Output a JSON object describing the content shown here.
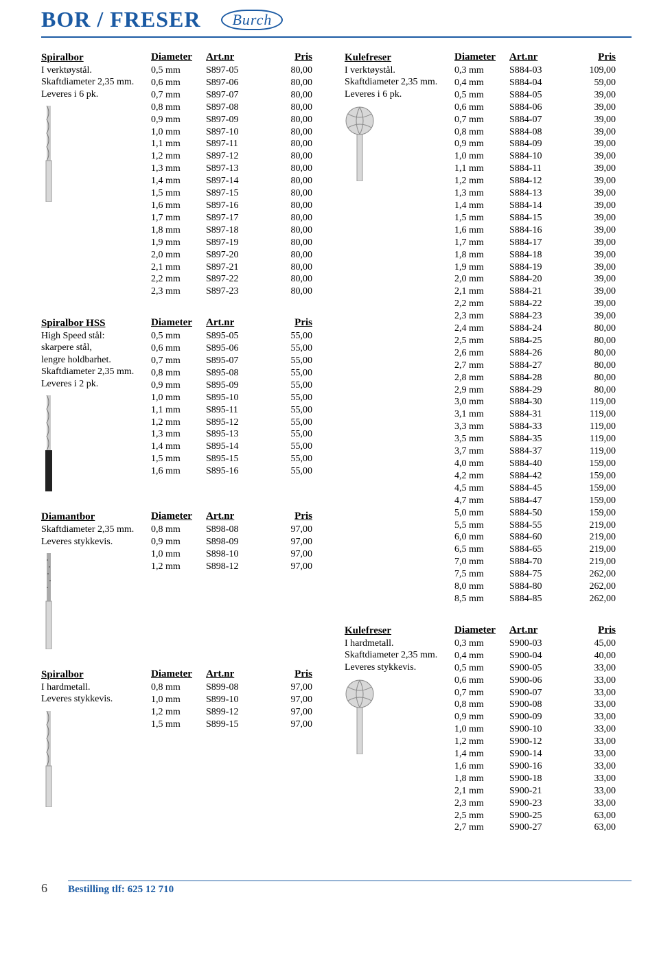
{
  "title": "BOR / FRESER",
  "logo_text": "Burch",
  "headers": {
    "diameter": "Diameter",
    "artnr": "Art.nr",
    "pris": "Pris"
  },
  "footer": {
    "page": "6",
    "order_text": "Bestilling tlf: 625 12 710"
  },
  "left_sections": [
    {
      "name": "Spiralbor",
      "desc_lines": [
        "I verktøystål.",
        "Skaftdiameter 2,35 mm.",
        "Leveres i 6 pk."
      ],
      "img": "twist-drill",
      "rows": [
        [
          "0,5 mm",
          "S897-05",
          "80,00"
        ],
        [
          "0,6 mm",
          "S897-06",
          "80,00"
        ],
        [
          "0,7 mm",
          "S897-07",
          "80,00"
        ],
        [
          "0,8 mm",
          "S897-08",
          "80,00"
        ],
        [
          "0,9 mm",
          "S897-09",
          "80,00"
        ],
        [
          "1,0 mm",
          "S897-10",
          "80,00"
        ],
        [
          "1,1 mm",
          "S897-11",
          "80,00"
        ],
        [
          "1,2 mm",
          "S897-12",
          "80,00"
        ],
        [
          "1,3 mm",
          "S897-13",
          "80,00"
        ],
        [
          "1,4 mm",
          "S897-14",
          "80,00"
        ],
        [
          "1,5 mm",
          "S897-15",
          "80,00"
        ],
        [
          "1,6 mm",
          "S897-16",
          "80,00"
        ],
        [
          "1,7 mm",
          "S897-17",
          "80,00"
        ],
        [
          "1,8 mm",
          "S897-18",
          "80,00"
        ],
        [
          "1,9 mm",
          "S897-19",
          "80,00"
        ],
        [
          "2,0 mm",
          "S897-20",
          "80,00"
        ],
        [
          "2,1 mm",
          "S897-21",
          "80,00"
        ],
        [
          "2,2 mm",
          "S897-22",
          "80,00"
        ],
        [
          "2,3 mm",
          "S897-23",
          "80,00"
        ]
      ]
    },
    {
      "name": "Spiralbor HSS",
      "desc_lines": [
        "High Speed stål:",
        "skarpere stål,",
        "lengre holdbarhet.",
        "Skaftdiameter 2,35 mm.",
        "Leveres i 2 pk."
      ],
      "img": "twist-drill-black",
      "rows": [
        [
          "0,5 mm",
          "S895-05",
          "55,00"
        ],
        [
          "0,6 mm",
          "S895-06",
          "55,00"
        ],
        [
          "0,7 mm",
          "S895-07",
          "55,00"
        ],
        [
          "0,8 mm",
          "S895-08",
          "55,00"
        ],
        [
          "0,9 mm",
          "S895-09",
          "55,00"
        ],
        [
          "1,0 mm",
          "S895-10",
          "55,00"
        ],
        [
          "1,1 mm",
          "S895-11",
          "55,00"
        ],
        [
          "1,2 mm",
          "S895-12",
          "55,00"
        ],
        [
          "1,3 mm",
          "S895-13",
          "55,00"
        ],
        [
          "1,4 mm",
          "S895-14",
          "55,00"
        ],
        [
          "1,5 mm",
          "S895-15",
          "55,00"
        ],
        [
          "1,6 mm",
          "S895-16",
          "55,00"
        ]
      ]
    },
    {
      "name": "Diamantbor",
      "desc_lines": [
        "Skaftdiameter 2,35 mm.",
        "Leveres stykkevis."
      ],
      "img": "diamond-drill",
      "rows": [
        [
          "0,8 mm",
          "S898-08",
          "97,00"
        ],
        [
          "0,9 mm",
          "S898-09",
          "97,00"
        ],
        [
          "1,0 mm",
          "S898-10",
          "97,00"
        ],
        [
          "1,2 mm",
          "S898-12",
          "97,00"
        ]
      ]
    },
    {
      "name": "Spiralbor",
      "desc_lines": [
        "I hardmetall.",
        "Leveres stykkevis."
      ],
      "img": "twist-drill",
      "rows": [
        [
          "0,8 mm",
          "S899-08",
          "97,00"
        ],
        [
          "1,0 mm",
          "S899-10",
          "97,00"
        ],
        [
          "1,2 mm",
          "S899-12",
          "97,00"
        ],
        [
          "1,5 mm",
          "S899-15",
          "97,00"
        ]
      ]
    }
  ],
  "right_sections": [
    {
      "name": "Kulefreser",
      "desc_lines": [
        "I verktøystål.",
        "Skaftdiameter 2,35 mm.",
        "Leveres i 6 pk."
      ],
      "img": "ball-mill",
      "rows": [
        [
          "0,3 mm",
          "S884-03",
          "109,00"
        ],
        [
          "0,4 mm",
          "S884-04",
          "59,00"
        ],
        [
          "0,5 mm",
          "S884-05",
          "39,00"
        ],
        [
          "0,6 mm",
          "S884-06",
          "39,00"
        ],
        [
          "0,7 mm",
          "S884-07",
          "39,00"
        ],
        [
          "0,8 mm",
          "S884-08",
          "39,00"
        ],
        [
          "0,9 mm",
          "S884-09",
          "39,00"
        ],
        [
          "1,0 mm",
          "S884-10",
          "39,00"
        ],
        [
          "1,1 mm",
          "S884-11",
          "39,00"
        ],
        [
          "1,2 mm",
          "S884-12",
          "39,00"
        ],
        [
          "1,3 mm",
          "S884-13",
          "39,00"
        ],
        [
          "1,4 mm",
          "S884-14",
          "39,00"
        ],
        [
          "1,5 mm",
          "S884-15",
          "39,00"
        ],
        [
          "1,6 mm",
          "S884-16",
          "39,00"
        ],
        [
          "1,7 mm",
          "S884-17",
          "39,00"
        ],
        [
          "1,8 mm",
          "S884-18",
          "39,00"
        ],
        [
          "1,9 mm",
          "S884-19",
          "39,00"
        ],
        [
          "2,0 mm",
          "S884-20",
          "39,00"
        ],
        [
          "2,1 mm",
          "S884-21",
          "39,00"
        ],
        [
          "2,2 mm",
          "S884-22",
          "39,00"
        ],
        [
          "2,3 mm",
          "S884-23",
          "39,00"
        ],
        [
          "2,4 mm",
          "S884-24",
          "80,00"
        ],
        [
          "2,5 mm",
          "S884-25",
          "80,00"
        ],
        [
          "2,6 mm",
          "S884-26",
          "80,00"
        ],
        [
          "2,7 mm",
          "S884-27",
          "80,00"
        ],
        [
          "2,8 mm",
          "S884-28",
          "80,00"
        ],
        [
          "2,9 mm",
          "S884-29",
          "80,00"
        ],
        [
          "3,0 mm",
          "S884-30",
          "119,00"
        ],
        [
          "3,1 mm",
          "S884-31",
          "119,00"
        ],
        [
          "3,3 mm",
          "S884-33",
          "119,00"
        ],
        [
          "3,5 mm",
          "S884-35",
          "119,00"
        ],
        [
          "3,7 mm",
          "S884-37",
          "119,00"
        ],
        [
          "4,0 mm",
          "S884-40",
          "159,00"
        ],
        [
          "4,2 mm",
          "S884-42",
          "159,00"
        ],
        [
          "4,5 mm",
          "S884-45",
          "159,00"
        ],
        [
          "4,7 mm",
          "S884-47",
          "159,00"
        ],
        [
          "5,0 mm",
          "S884-50",
          "159,00"
        ],
        [
          "5,5 mm",
          "S884-55",
          "219,00"
        ],
        [
          "6,0 mm",
          "S884-60",
          "219,00"
        ],
        [
          "6,5 mm",
          "S884-65",
          "219,00"
        ],
        [
          "7,0 mm",
          "S884-70",
          "219,00"
        ],
        [
          "7,5 mm",
          "S884-75",
          "262,00"
        ],
        [
          "8,0 mm",
          "S884-80",
          "262,00"
        ],
        [
          "8,5 mm",
          "S884-85",
          "262,00"
        ]
      ]
    },
    {
      "name": "Kulefreser",
      "desc_lines": [
        "I hardmetall.",
        "Skaftdiameter 2,35 mm.",
        "Leveres stykkevis."
      ],
      "img": "ball-mill",
      "rows": [
        [
          "0,3 mm",
          "S900-03",
          "45,00"
        ],
        [
          "0,4 mm",
          "S900-04",
          "40,00"
        ],
        [
          "0,5 mm",
          "S900-05",
          "33,00"
        ],
        [
          "0,6 mm",
          "S900-06",
          "33,00"
        ],
        [
          "0,7 mm",
          "S900-07",
          "33,00"
        ],
        [
          "0,8 mm",
          "S900-08",
          "33,00"
        ],
        [
          "0,9 mm",
          "S900-09",
          "33,00"
        ],
        [
          "1,0 mm",
          "S900-10",
          "33,00"
        ],
        [
          "1,2 mm",
          "S900-12",
          "33,00"
        ],
        [
          "1,4 mm",
          "S900-14",
          "33,00"
        ],
        [
          "1,6 mm",
          "S900-16",
          "33,00"
        ],
        [
          "1,8 mm",
          "S900-18",
          "33,00"
        ],
        [
          "2,1 mm",
          "S900-21",
          "33,00"
        ],
        [
          "2,3 mm",
          "S900-23",
          "33,00"
        ],
        [
          "2,5 mm",
          "S900-25",
          "63,00"
        ],
        [
          "2,7 mm",
          "S900-27",
          "63,00"
        ]
      ]
    }
  ]
}
